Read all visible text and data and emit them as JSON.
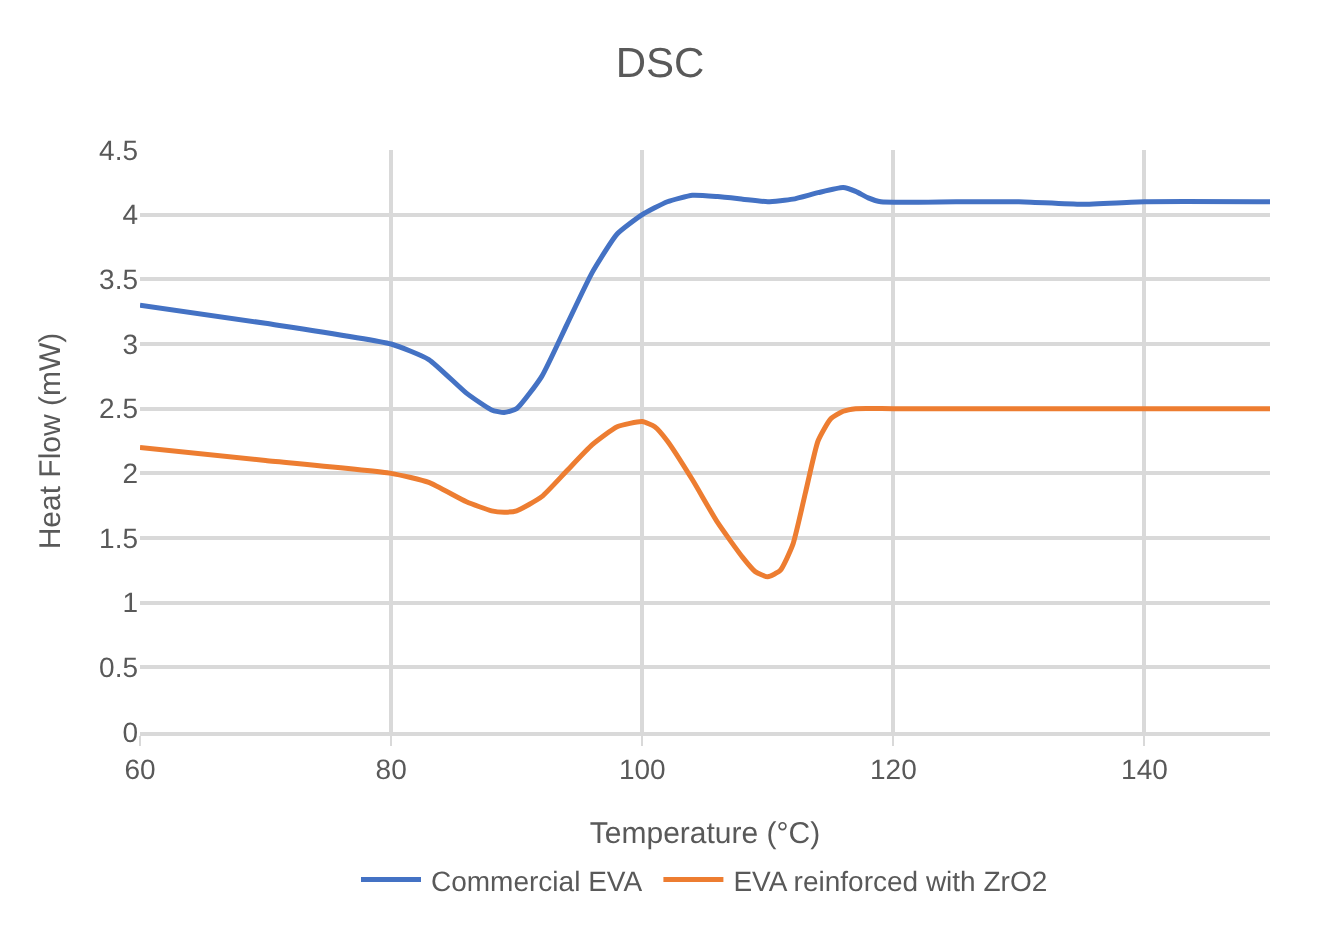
{
  "chart_data": {
    "type": "line",
    "title": "DSC",
    "xlabel": "Temperature (°C)",
    "ylabel": "Heat Flow (mW)",
    "xlim": [
      60,
      150
    ],
    "xticks": [
      60,
      80,
      100,
      120,
      140
    ],
    "ylim": [
      0,
      4.5
    ],
    "yticks": [
      0,
      0.5,
      1,
      1.5,
      2,
      2.5,
      3,
      3.5,
      4,
      4.5
    ],
    "grid": true,
    "legend": "bottom",
    "marker": "none",
    "line_style": "solid",
    "series": [
      {
        "name": "Commercial EVA",
        "color": "#4472c4",
        "x": [
          60,
          70,
          80,
          83,
          86,
          88,
          89,
          90,
          92,
          94,
          96,
          98,
          100,
          102,
          104,
          106,
          108,
          110,
          112,
          114,
          116,
          117,
          118,
          119,
          125,
          130,
          135,
          140,
          150
        ],
        "values": [
          3.3,
          3.16,
          3.0,
          2.88,
          2.62,
          2.49,
          2.47,
          2.5,
          2.75,
          3.15,
          3.55,
          3.85,
          4.0,
          4.1,
          4.15,
          4.14,
          4.12,
          4.1,
          4.12,
          4.17,
          4.21,
          4.18,
          4.13,
          4.1,
          4.1,
          4.1,
          4.08,
          4.1,
          4.1
        ]
      },
      {
        "name": "EVA reinforced with ZrO2",
        "color": "#ed7d31",
        "x": [
          60,
          70,
          80,
          83,
          86,
          88,
          89,
          90,
          92,
          94,
          96,
          98,
          100,
          101,
          102,
          104,
          106,
          108,
          109,
          110,
          111,
          112,
          113,
          114,
          115,
          116,
          117,
          120,
          150
        ],
        "values": [
          2.2,
          2.1,
          2.0,
          1.93,
          1.78,
          1.71,
          1.7,
          1.71,
          1.82,
          2.02,
          2.22,
          2.36,
          2.4,
          2.36,
          2.25,
          1.95,
          1.62,
          1.35,
          1.24,
          1.2,
          1.25,
          1.45,
          1.85,
          2.25,
          2.42,
          2.48,
          2.5,
          2.5,
          2.5
        ]
      }
    ]
  }
}
